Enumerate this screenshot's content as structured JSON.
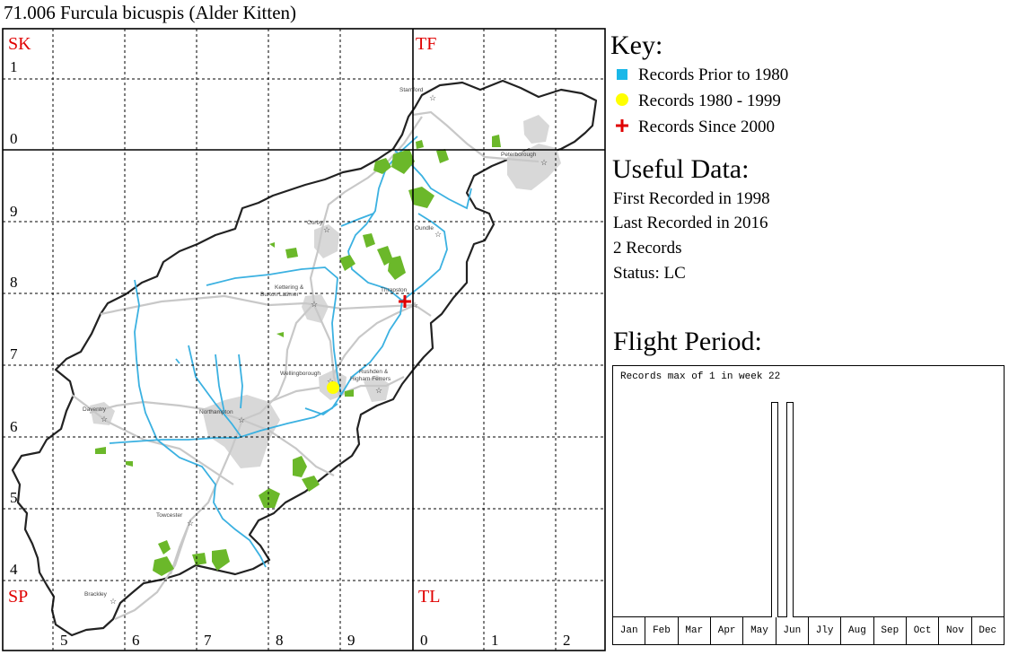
{
  "title": "71.006 Furcula bicuspis (Alder Kitten)",
  "grid_squares": {
    "sk": "SK",
    "tf": "TF",
    "sp": "SP",
    "tl": "TL"
  },
  "grid_numbers": {
    "n1": "1",
    "n0": "0",
    "n9": "9",
    "n8": "8",
    "n7": "7",
    "n6": "6",
    "n5": "5",
    "n4": "4",
    "e5": "5",
    "e6": "6",
    "e7": "7",
    "e8": "8",
    "e9": "9",
    "e0": "0",
    "e1": "1",
    "e2": "2"
  },
  "towns": {
    "stamford": "Stamford",
    "peterborough": "Peterborough",
    "corby": "Corby",
    "oundle": "Oundle",
    "kettering1": "Kettering &",
    "kettering2": "Burton Latimer",
    "thrapston": "Thrapston",
    "wellingborough": "Wellingborough",
    "rushden1": "Rushden &",
    "rushden2": "Higham Ferrers",
    "daventry": "Daventry",
    "northampton": "Northampton",
    "towcester": "Towcester",
    "brackley": "Brackley"
  },
  "key": {
    "heading": "Key:",
    "prior": "Records Prior to 1980",
    "mid": "Records 1980 - 1999",
    "since": "Records Since 2000",
    "colors": {
      "prior": "#1ab8e8",
      "mid": "#ffff00",
      "since": "#e00000"
    }
  },
  "useful": {
    "heading": "Useful Data:",
    "first": "First Recorded in 1998",
    "last": "Last Recorded in 2016",
    "records": "2 Records",
    "status": "Status: LC"
  },
  "flight": {
    "heading": "Flight Period:",
    "label": "Records max of 1 in week 22",
    "months": [
      "Jan",
      "Feb",
      "Mar",
      "Apr",
      "May",
      "Jun",
      "Jly",
      "Aug",
      "Sep",
      "Oct",
      "Nov",
      "Dec"
    ],
    "bars": [
      {
        "week": 22,
        "value": 1
      },
      {
        "week": 24,
        "value": 1
      }
    ],
    "max": 1
  },
  "records": [
    {
      "type": "mid",
      "grid": "SP86"
    },
    {
      "type": "since",
      "grid": "SP97"
    }
  ]
}
